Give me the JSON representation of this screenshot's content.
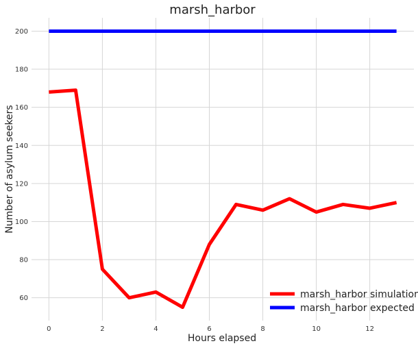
{
  "chart_data": {
    "type": "line",
    "title": "marsh_harbor",
    "xlabel": "Hours elapsed",
    "ylabel": "Number of asylum seekers",
    "x": [
      0,
      1,
      2,
      3,
      4,
      5,
      6,
      7,
      8,
      9,
      10,
      11,
      12,
      13
    ],
    "xlim": [
      -0.65,
      13.65
    ],
    "ylim": [
      48,
      207
    ],
    "x_ticks": [
      0,
      2,
      4,
      6,
      8,
      10,
      12
    ],
    "y_ticks": [
      60,
      80,
      100,
      120,
      140,
      160,
      180,
      200
    ],
    "grid": true,
    "legend_position": "lower-right",
    "series": [
      {
        "name": "marsh_harbor simulation",
        "color": "#ff0000",
        "values": [
          168,
          169,
          75,
          60,
          63,
          55,
          88,
          109,
          106,
          112,
          105,
          109,
          107,
          110
        ]
      },
      {
        "name": "marsh_harbor expected",
        "color": "#0000ff",
        "values": [
          200,
          200,
          200,
          200,
          200,
          200,
          200,
          200,
          200,
          200,
          200,
          200,
          200,
          200
        ]
      }
    ]
  }
}
